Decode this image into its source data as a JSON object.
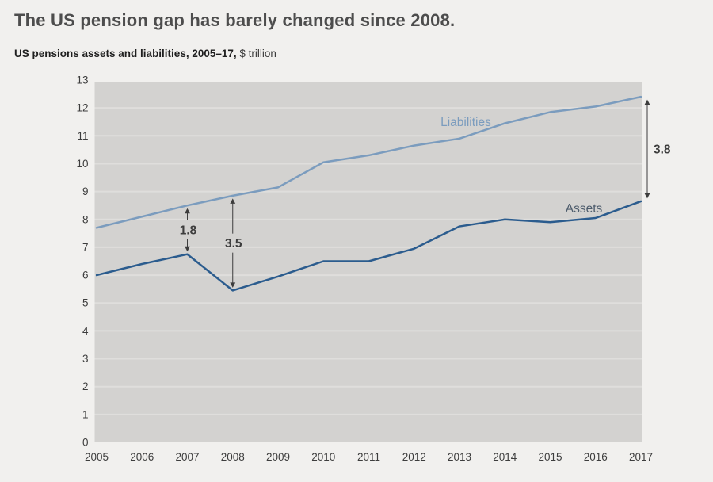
{
  "chart_data": {
    "type": "line",
    "title": "The US pension gap has barely changed since 2008.",
    "subtitle_bold": "US pensions assets and liabilities, 2005–17,",
    "subtitle_unit": "$ trillion",
    "x": [
      2005,
      2006,
      2007,
      2008,
      2009,
      2010,
      2011,
      2012,
      2013,
      2014,
      2015,
      2016,
      2017
    ],
    "ylim": [
      0,
      13
    ],
    "yticks": [
      0,
      1,
      2,
      3,
      4,
      5,
      6,
      7,
      8,
      9,
      10,
      11,
      12,
      13
    ],
    "grid": "horizontal-gridlines",
    "legend_position": "inline-series-labels",
    "series": [
      {
        "name": "Liabilities",
        "color": "#7b9cbe",
        "values": [
          7.7,
          8.1,
          8.5,
          8.85,
          9.15,
          10.05,
          10.3,
          10.65,
          10.9,
          11.45,
          11.85,
          12.05,
          12.4
        ]
      },
      {
        "name": "Assets",
        "color": "#2b5c8e",
        "values": [
          6.0,
          6.4,
          6.75,
          5.45,
          5.95,
          6.5,
          6.5,
          6.95,
          7.75,
          8.0,
          7.9,
          8.05,
          8.65
        ]
      }
    ],
    "series_labels": [
      {
        "text": "Liabilities",
        "x": 588,
        "y": 159,
        "color": "#7b9cbe"
      },
      {
        "text": "Assets",
        "x": 737,
        "y": 268,
        "color": "#4c5b6b"
      }
    ],
    "annotations": [
      {
        "value_label": "1.8",
        "year": 2007,
        "label_placement": "middle",
        "arrow_x_offset": 0
      },
      {
        "value_label": "3.5",
        "year": 2008,
        "label_placement": "middle",
        "arrow_x_offset": 0
      },
      {
        "value_label": "3.8",
        "year": 2017,
        "label_placement": "right",
        "arrow_x_offset": 8
      }
    ]
  },
  "colors": {
    "page_bg": "#f1f0ee",
    "plot_bg": "#d3d2d0",
    "gridline": "#dfdedc",
    "title_text": "#4d4d4d",
    "tick_text": "#3d3d3d",
    "annotation": "#3d3d3d"
  }
}
